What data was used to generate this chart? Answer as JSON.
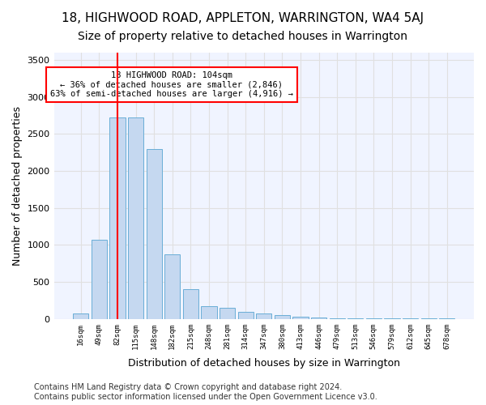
{
  "title1": "18, HIGHWOOD ROAD, APPLETON, WARRINGTON, WA4 5AJ",
  "title2": "Size of property relative to detached houses in Warrington",
  "xlabel": "Distribution of detached houses by size in Warrington",
  "ylabel": "Number of detached properties",
  "categories": [
    "16sqm",
    "49sqm",
    "82sqm",
    "115sqm",
    "148sqm",
    "182sqm",
    "215sqm",
    "248sqm",
    "281sqm",
    "314sqm",
    "347sqm",
    "380sqm",
    "413sqm",
    "446sqm",
    "479sqm",
    "513sqm",
    "546sqm",
    "579sqm",
    "612sqm",
    "645sqm",
    "678sqm"
  ],
  "values": [
    75,
    1075,
    2725,
    2725,
    2300,
    875,
    400,
    175,
    150,
    100,
    75,
    50,
    30,
    15,
    10,
    5,
    5,
    5,
    5,
    5,
    5
  ],
  "bar_color": "#c5d8f0",
  "bar_edge_color": "#6aaed6",
  "grid_color": "#e0e0e0",
  "bg_color": "#f0f4ff",
  "annotation_text": "18 HIGHWOOD ROAD: 104sqm\n← 36% of detached houses are smaller (2,846)\n63% of semi-detached houses are larger (4,916) →",
  "annotation_box_color": "white",
  "annotation_box_edge_color": "red",
  "vline_x": 2,
  "vline_color": "red",
  "ylim": [
    0,
    3600
  ],
  "yticks": [
    0,
    500,
    1000,
    1500,
    2000,
    2500,
    3000,
    3500
  ],
  "footer": "Contains HM Land Registry data © Crown copyright and database right 2024.\nContains public sector information licensed under the Open Government Licence v3.0.",
  "title1_fontsize": 11,
  "title2_fontsize": 10,
  "xlabel_fontsize": 9,
  "ylabel_fontsize": 9,
  "footer_fontsize": 7
}
